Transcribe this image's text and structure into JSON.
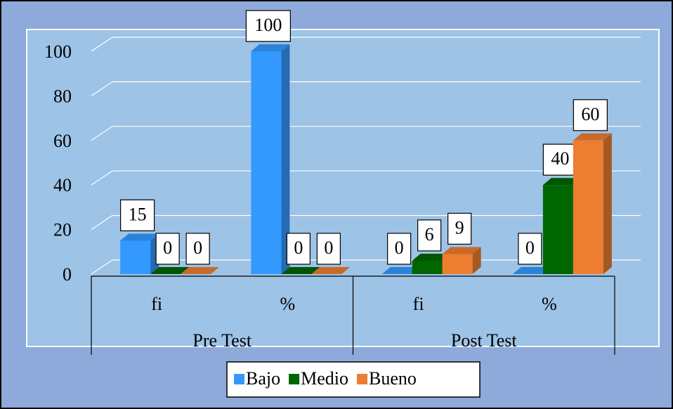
{
  "chart_data": {
    "type": "bar3d",
    "categories": [
      "fi",
      "%",
      "fi",
      "%"
    ],
    "category_groups": [
      "Pre Test",
      "Post Test"
    ],
    "series": [
      {
        "name": "Bajo",
        "color": "#3399ff",
        "values": [
          15,
          100,
          0,
          0
        ]
      },
      {
        "name": "Medio",
        "color": "#006600",
        "values": [
          0,
          0,
          6,
          40
        ]
      },
      {
        "name": "Bueno",
        "color": "#ed7d31",
        "values": [
          0,
          0,
          9,
          60
        ]
      }
    ],
    "ylim": [
      0,
      100
    ],
    "yticks": [
      0,
      20,
      40,
      60,
      80,
      100
    ],
    "grid": true,
    "legend": "bottom"
  }
}
